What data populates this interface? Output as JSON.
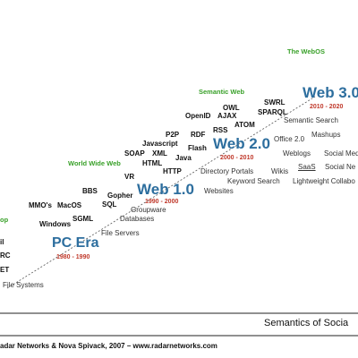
{
  "eras": [
    {
      "name": "PC Era",
      "range": "1980 - 1990"
    },
    {
      "name": "Web 1.0",
      "range": "1990 - 2000"
    },
    {
      "name": "Web 2.0",
      "range": "2000 - 2010"
    },
    {
      "name": "Web 3.0",
      "range": "2010 - 2020"
    }
  ],
  "milestones": {
    "webos": "The WebOS",
    "semantic_web": "Semantic Web",
    "world_wide_web": "World Wide Web",
    "desktop_partial": "op"
  },
  "technologies": {
    "owl": "OWL",
    "swrl": "SWRL",
    "sparql": "SPARQL",
    "openid": "OpenID",
    "ajax": "AJAX",
    "atom": "ATOM",
    "rss": "RSS",
    "p2p": "P2P",
    "rdf": "RDF",
    "javascript": "Javascript",
    "flash": "Flash",
    "soap": "SOAP",
    "xml": "XML",
    "html": "HTML",
    "java": "Java",
    "http": "HTTP",
    "vr": "VR",
    "bbs": "BBS",
    "gopher": "Gopher",
    "sql": "SQL",
    "mmos": "MMO's",
    "macos": "MacOS",
    "sgml": "SGML",
    "windows": "Windows",
    "partial_il": "il",
    "partial_rc": "RC",
    "partial_et": "ET"
  },
  "features": {
    "semantic_search": "Semantic Search",
    "office2": "Office 2.0",
    "mashups": "Mashups",
    "weblogs": "Weblogs",
    "social_media": "Social Media",
    "directory_portals": "Directory Portals",
    "wikis": "Wikis",
    "saas": "SaaS",
    "social_networks": "Social Ne",
    "keyword_search": "Keyword Search",
    "lightweight": "Lightweight Collabo",
    "websites": "Websites",
    "groupware": "Groupware",
    "databases": "Databases",
    "file_servers": "File Servers",
    "file_systems": "File Systems"
  },
  "footer": {
    "title": "Semantics of Socia",
    "credit": "adar Networks & Nova Spivack, 2007 – www.radarnetworks.com"
  },
  "colors": {
    "era_blue": "#2d6e9e",
    "range_red": "#c0392b",
    "milestone_green": "#3aa12a"
  }
}
